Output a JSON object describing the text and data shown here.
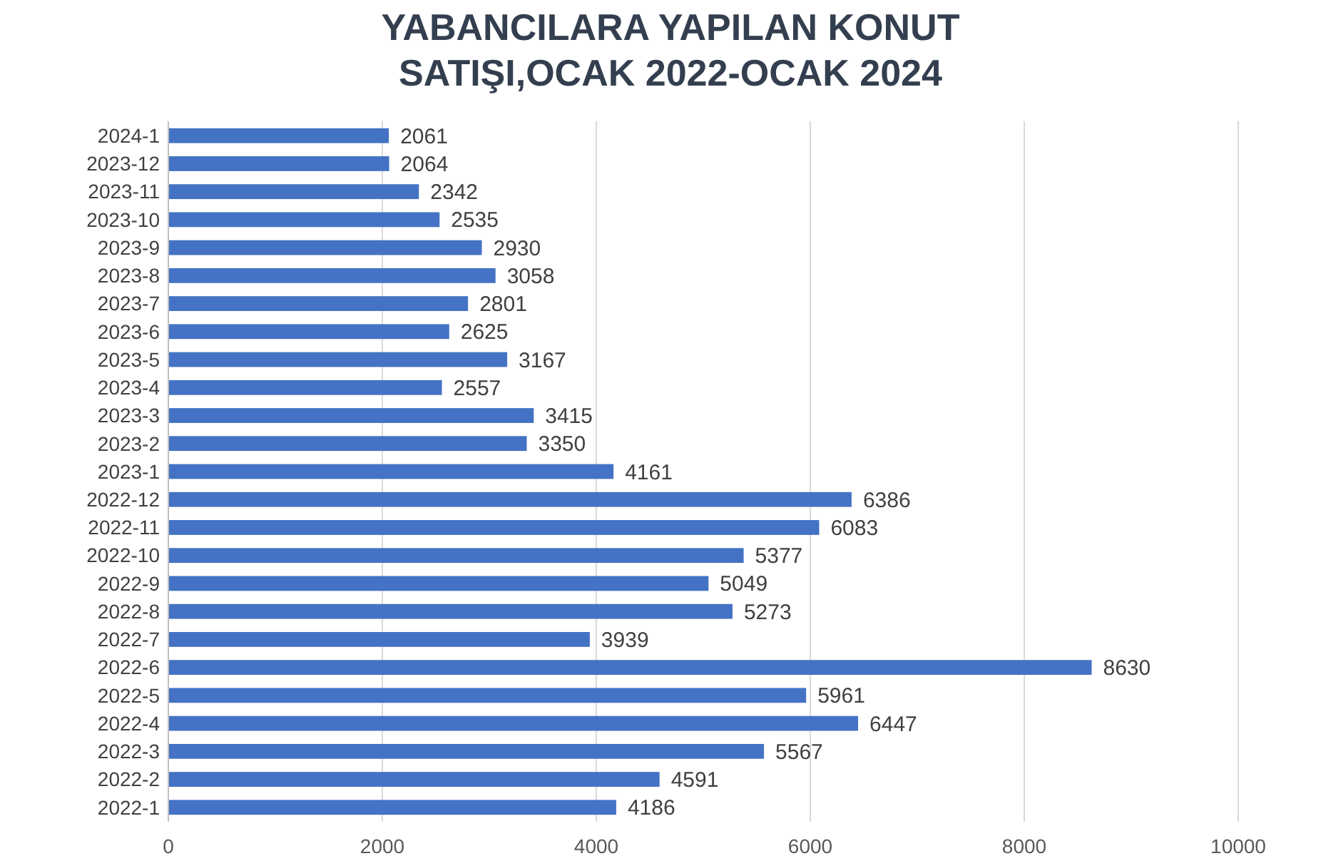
{
  "chart_data": {
    "type": "bar",
    "orientation": "horizontal",
    "title": "YABANCILARA YAPILAN KONUT\nSATIŞI,OCAK 2022-OCAK 2024",
    "categories": [
      "2024-1",
      "2023-12",
      "2023-11",
      "2023-10",
      "2023-9",
      "2023-8",
      "2023-7",
      "2023-6",
      "2023-5",
      "2023-4",
      "2023-3",
      "2023-2",
      "2023-1",
      "2022-12",
      "2022-11",
      "2022-10",
      "2022-9",
      "2022-8",
      "2022-7",
      "2022-6",
      "2022-5",
      "2022-4",
      "2022-3",
      "2022-2",
      "2022-1"
    ],
    "values": [
      2061,
      2064,
      2342,
      2535,
      2930,
      3058,
      2801,
      2625,
      3167,
      2557,
      3415,
      3350,
      4161,
      6386,
      6083,
      5377,
      5049,
      5273,
      3939,
      8630,
      5961,
      6447,
      5567,
      4591,
      4186
    ],
    "color": "#4472c4",
    "xlim": [
      0,
      10000
    ],
    "xticks": [
      0,
      2000,
      4000,
      6000,
      8000,
      10000
    ],
    "grid": "x",
    "data_labels": true
  }
}
